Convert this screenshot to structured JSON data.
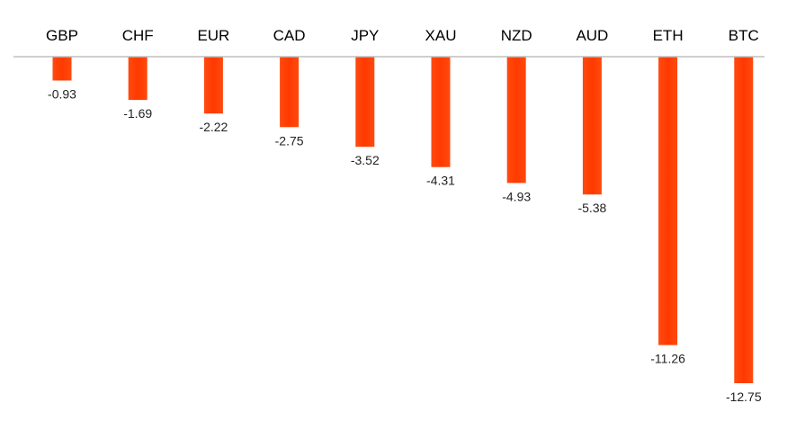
{
  "chart_data": {
    "type": "bar",
    "orientation": "vertical",
    "categories": [
      "GBP",
      "CHF",
      "EUR",
      "CAD",
      "JPY",
      "XAU",
      "NZD",
      "AUD",
      "ETH",
      "BTC"
    ],
    "values": [
      -0.93,
      -1.69,
      -2.22,
      -2.75,
      -3.52,
      -4.31,
      -4.93,
      -5.38,
      -11.26,
      -12.75
    ],
    "data_labels": [
      "-0.93",
      "-1.69",
      "-2.22",
      "-2.75",
      "-3.52",
      "-4.31",
      "-4.93",
      "-5.38",
      "-11.26",
      "-12.75"
    ],
    "category_axis_position": "top",
    "value_axis_visible": false,
    "gridlines": false,
    "legend": "none",
    "ylim": [
      -12.75,
      0
    ],
    "bar_color": "#ff4a0f",
    "bar_color_dark": "#ff3a00",
    "axis_line_color": "#bfbfbf"
  }
}
